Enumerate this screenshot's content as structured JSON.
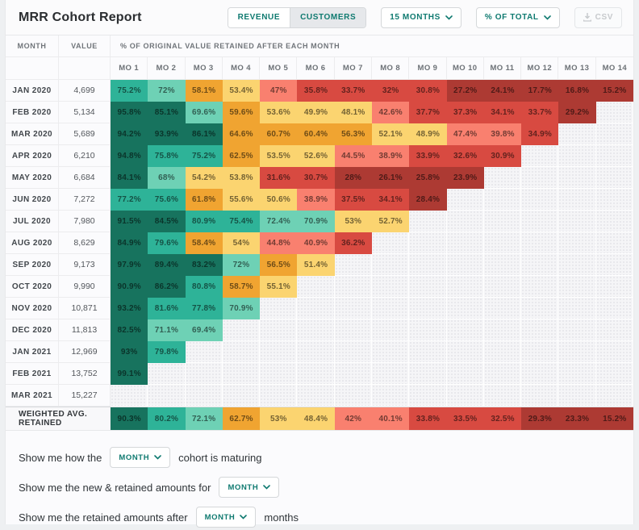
{
  "page": {
    "bg": "#eef0f2",
    "card_bg": "#fbfbfd",
    "accent_teal": "#0f7a70"
  },
  "header": {
    "title": "MRR Cohort Report",
    "toggle": {
      "options": [
        "REVENUE",
        "CUSTOMERS"
      ],
      "active": "CUSTOMERS"
    },
    "months_dropdown": "15 MONTHS",
    "display_dropdown": "% OF TOTAL",
    "csv_label": "CSV"
  },
  "table": {
    "month_header": "MONTH",
    "value_header": "VALUE",
    "span_header": "% OF ORIGINAL VALUE RETAINED AFTER EACH MONTH",
    "mo_headers": [
      "MO 1",
      "MO 2",
      "MO 3",
      "MO 4",
      "MO 5",
      "MO 6",
      "MO 7",
      "MO 8",
      "MO 9",
      "MO 10",
      "MO 11",
      "MO 12",
      "MO 13",
      "MO 14"
    ],
    "rows": [
      {
        "month": "JAN 2020",
        "value": "4,699",
        "retention": [
          75.2,
          72,
          58.1,
          53.4,
          47,
          35.8,
          33.7,
          32,
          30.8,
          27.2,
          24.1,
          17.7,
          16.8,
          15.2
        ]
      },
      {
        "month": "FEB 2020",
        "value": "5,134",
        "retention": [
          95.8,
          85.1,
          69.6,
          59.6,
          53.6,
          49.9,
          48.1,
          42.6,
          37.7,
          37.3,
          34.1,
          33.7,
          29.2
        ]
      },
      {
        "month": "MAR 2020",
        "value": "5,689",
        "retention": [
          94.2,
          93.9,
          86.1,
          64.6,
          60.7,
          60.4,
          56.3,
          52.1,
          48.9,
          47.4,
          39.8,
          34.9
        ]
      },
      {
        "month": "APR 2020",
        "value": "6,210",
        "retention": [
          94.8,
          75.8,
          75.2,
          62.5,
          53.5,
          52.6,
          44.5,
          38.9,
          33.9,
          32.6,
          30.9
        ]
      },
      {
        "month": "MAY 2020",
        "value": "6,684",
        "retention": [
          84.1,
          68,
          54.2,
          53.8,
          31.6,
          30.7,
          28,
          26.1,
          25.8,
          23.9
        ]
      },
      {
        "month": "JUN 2020",
        "value": "7,272",
        "retention": [
          77.2,
          75.6,
          61.8,
          55.6,
          50.6,
          38.9,
          37.5,
          34.1,
          28.4
        ]
      },
      {
        "month": "JUL 2020",
        "value": "7,980",
        "retention": [
          91.5,
          84.5,
          80.9,
          75.4,
          72.4,
          70.9,
          53,
          52.7
        ]
      },
      {
        "month": "AUG 2020",
        "value": "8,629",
        "retention": [
          84.9,
          79.6,
          58.4,
          54,
          44.8,
          40.9,
          36.2
        ]
      },
      {
        "month": "SEP 2020",
        "value": "9,173",
        "retention": [
          97.9,
          89.4,
          83.2,
          72,
          56.5,
          51.4
        ]
      },
      {
        "month": "OCT 2020",
        "value": "9,990",
        "retention": [
          90.9,
          86.2,
          80.8,
          58.7,
          55.1
        ]
      },
      {
        "month": "NOV 2020",
        "value": "10,871",
        "retention": [
          93.2,
          81.6,
          77.8,
          70.9
        ]
      },
      {
        "month": "DEC 2020",
        "value": "11,813",
        "retention": [
          82.5,
          71.1,
          69.4
        ]
      },
      {
        "month": "JAN 2021",
        "value": "12,969",
        "retention": [
          93,
          79.8
        ]
      },
      {
        "month": "FEB 2021",
        "value": "13,752",
        "retention": [
          99.1
        ]
      },
      {
        "month": "MAR 2021",
        "value": "15,227",
        "retention": []
      }
    ],
    "weighted": {
      "label": "WEIGHTED AVG. RETAINED",
      "retention": [
        90.3,
        80.2,
        72.1,
        62.7,
        53,
        48.4,
        42,
        40.1,
        33.8,
        33.5,
        32.5,
        29.3,
        23.3,
        15.2
      ]
    },
    "color_scale": [
      {
        "min": 82,
        "color": "#17735e"
      },
      {
        "min": 72.5,
        "color": "#2eb398"
      },
      {
        "min": 65,
        "color": "#6ed1b5"
      },
      {
        "min": 56,
        "color": "#f0a431"
      },
      {
        "min": 47.7,
        "color": "#fbd470"
      },
      {
        "min": 38,
        "color": "#f9806f"
      },
      {
        "min": 29.5,
        "color": "#d84a41"
      },
      {
        "min": 0,
        "color": "#ad3a33"
      }
    ]
  },
  "sentences": [
    {
      "prefix": "Show me how the",
      "dropdown": "MONTH",
      "suffix": "cohort is maturing"
    },
    {
      "prefix": "Show me the new & retained amounts for",
      "dropdown": "MONTH",
      "suffix": ""
    },
    {
      "prefix": "Show me the retained amounts after",
      "dropdown": "MONTH",
      "suffix": "months"
    }
  ]
}
